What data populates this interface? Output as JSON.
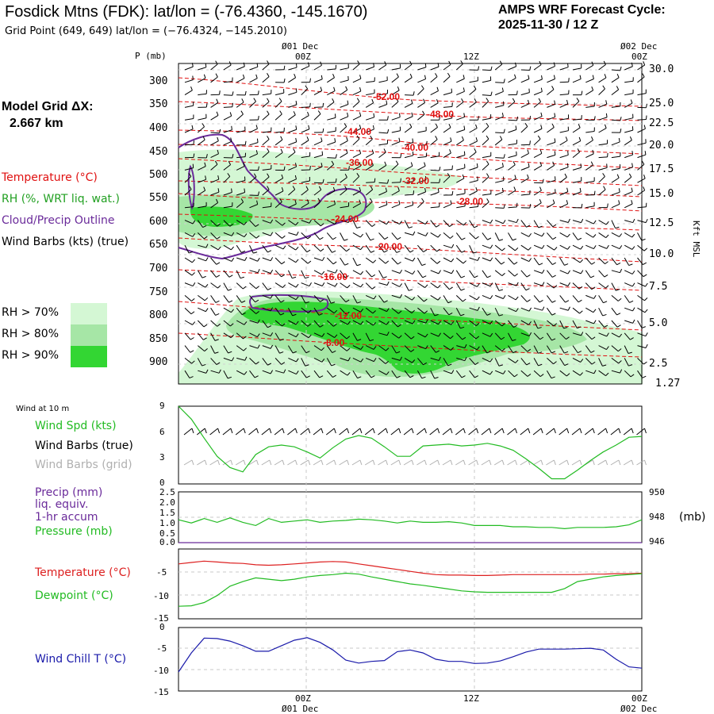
{
  "header": {
    "title": "Fosdick Mtns (FDK):  lat/lon = (-76.4360, -145.1670)",
    "grid_point": "Grid Point (649, 649) lat/lon = (−76.4324, −145.2010)",
    "cycle_line1": "AMPS WRF Forecast Cycle:",
    "cycle_line2": "2025-11-30 / 12  Z"
  },
  "legend": {
    "model_grid_label": "Model Grid ΔX:",
    "model_grid_value": "2.667 km",
    "temperature": "Temperature (°C)",
    "rh": "RH (%, WRT liq. wat.)",
    "cloud": "Cloud/Precip Outline",
    "wind_barbs": "Wind Barbs (kts) (true)",
    "rh70": "RH > 70%",
    "rh80": "RH > 80%",
    "rh90": "RH > 90%",
    "rh70_color": "#d4f7d4",
    "rh80_color": "#a6e6a6",
    "rh90_color": "#33d633",
    "temp_color": "#e01010",
    "rh_label_color": "#22a022",
    "cloud_color": "#6a2a9a"
  },
  "time_axis": {
    "top_date_left": "Ø01 Dec",
    "top_date_right": "Ø02 Dec",
    "bottom_date_left": "Ø01 Dec",
    "bottom_date_right": "Ø02 Dec",
    "ticks": [
      "00Z",
      "12Z",
      "00Z"
    ]
  },
  "panels": {
    "wind_at_10m": "Wind at 10 m",
    "wind_spd": "Wind Spd (kts)",
    "wind_barbs_true": "Wind Barbs (true)",
    "wind_barbs_grid": "Wind Barbs (grid)",
    "precip1": "Precip (mm)",
    "precip2": "liq. equiv.",
    "precip3": "1-hr accum",
    "pressure": "Pressure (mb)",
    "pressure_unit": "(mb)",
    "temperature": "Temperature (°C)",
    "dewpoint": "Dewpoint (°C)",
    "wind_chill": "Wind Chill T (°C)",
    "green": "#22bb22",
    "red": "#dd2020",
    "purple": "#6a2a9a",
    "blue": "#1a1aaa",
    "grid_gray": "#b0b0b0"
  },
  "chart_data": [
    {
      "type": "contour",
      "name": "Time-height cross section",
      "ylabel": "P (mb)",
      "ylabel_right": "Kft MSL",
      "y_ticks": [
        "300",
        "350",
        "400",
        "450",
        "500",
        "550",
        "600",
        "650",
        "700",
        "750",
        "800",
        "850",
        "900"
      ],
      "y_right_ticks": [
        "30.0",
        "25.0",
        "22.5",
        "20.0",
        "17.5",
        "15.0",
        "12.5",
        "10.0",
        "7.5",
        "5.0",
        "2.5",
        "1.27"
      ],
      "temperature_contour_labels": [
        "-52.00",
        "-48.00",
        "-44.00",
        "-40.00",
        "-36.00",
        "-32.00",
        "-28.00",
        "-24.00",
        "-20.00",
        "-16.00",
        "-12.00",
        "-8.00"
      ]
    },
    {
      "type": "line",
      "name": "Wind speed 10 m",
      "ylabel": "Wind Spd (kts)",
      "y_ticks": [
        "9",
        "6",
        "3",
        "0"
      ],
      "ylim": [
        0,
        9
      ],
      "x_hours": [
        0,
        1,
        2,
        3,
        4,
        5,
        6,
        7,
        8,
        9,
        10,
        11,
        12,
        13,
        14,
        15,
        16,
        17,
        18,
        19,
        20,
        21,
        22,
        23,
        24,
        25,
        26,
        27,
        28,
        29,
        30,
        31,
        32,
        33,
        34,
        35,
        36
      ],
      "values": [
        9.0,
        7.5,
        5.3,
        3.2,
        1.9,
        1.4,
        3.4,
        4.3,
        4.5,
        4.3,
        3.7,
        3.0,
        4.2,
        5.2,
        5.6,
        5.3,
        4.3,
        3.2,
        3.2,
        4.4,
        4.5,
        4.6,
        4.4,
        4.5,
        4.7,
        4.4,
        3.9,
        2.9,
        1.8,
        0.6,
        0.6,
        1.6,
        2.7,
        3.7,
        4.5,
        5.4,
        5.5
      ]
    },
    {
      "type": "line",
      "name": "Precip and pressure",
      "ylabel": "Precip (mm) / Pressure (mb)",
      "y_ticks": [
        "2.5",
        "2.0",
        "1.5",
        "1.0",
        "0.5",
        "0.0"
      ],
      "y_right_ticks": [
        "950",
        "948",
        "946"
      ],
      "ylim_right": [
        946,
        950
      ],
      "x_hours": [
        0,
        1,
        2,
        3,
        4,
        5,
        6,
        7,
        8,
        9,
        10,
        11,
        12,
        13,
        14,
        15,
        16,
        17,
        18,
        19,
        20,
        21,
        22,
        23,
        24,
        25,
        26,
        27,
        28,
        29,
        30,
        31,
        32,
        33,
        34,
        35,
        36
      ],
      "pressure": [
        947.8,
        947.55,
        947.9,
        947.6,
        947.95,
        947.6,
        947.35,
        947.9,
        947.6,
        947.7,
        947.8,
        947.6,
        947.7,
        947.75,
        947.85,
        947.8,
        947.7,
        947.55,
        947.7,
        947.6,
        947.6,
        947.65,
        947.55,
        947.35,
        947.35,
        947.35,
        947.25,
        947.25,
        947.2,
        947.2,
        947.1,
        947.2,
        947.2,
        947.2,
        947.25,
        947.4,
        947.8
      ],
      "precip": [
        0,
        0,
        0,
        0,
        0,
        0,
        0,
        0,
        0,
        0,
        0,
        0,
        0,
        0,
        0,
        0,
        0,
        0,
        0,
        0,
        0,
        0,
        0,
        0,
        0,
        0,
        0,
        0,
        0,
        0,
        0,
        0,
        0,
        0,
        0,
        0,
        0
      ]
    },
    {
      "type": "line",
      "name": "Temperature and dewpoint",
      "y_ticks": [
        "-5",
        "-10",
        "-15"
      ],
      "ylim": [
        -15,
        0
      ],
      "x_hours": [
        0,
        1,
        2,
        3,
        4,
        5,
        6,
        7,
        8,
        9,
        10,
        11,
        12,
        13,
        14,
        15,
        16,
        17,
        18,
        19,
        20,
        21,
        22,
        23,
        24,
        25,
        26,
        27,
        28,
        29,
        30,
        31,
        32,
        33,
        34,
        35,
        36
      ],
      "series": [
        {
          "name": "Temperature (°C)",
          "values": [
            -3.2,
            -2.9,
            -2.6,
            -2.8,
            -3.0,
            -3.1,
            -3.4,
            -3.5,
            -3.4,
            -3.2,
            -3.0,
            -2.8,
            -2.7,
            -2.8,
            -3.2,
            -3.6,
            -4.0,
            -4.4,
            -4.8,
            -5.2,
            -5.5,
            -5.6,
            -5.6,
            -5.7,
            -5.7,
            -5.6,
            -5.5,
            -5.5,
            -5.5,
            -5.5,
            -5.5,
            -5.5,
            -5.4,
            -5.4,
            -5.3,
            -5.3,
            -5.2
          ]
        },
        {
          "name": "Dewpoint (°C)",
          "values": [
            -12.3,
            -12.2,
            -11.5,
            -10.0,
            -8.0,
            -7.0,
            -6.2,
            -6.5,
            -6.8,
            -6.5,
            -6.0,
            -5.7,
            -5.5,
            -5.2,
            -5.4,
            -6.0,
            -6.5,
            -7.0,
            -7.5,
            -7.8,
            -8.2,
            -8.6,
            -9.0,
            -9.2,
            -9.3,
            -9.3,
            -9.3,
            -9.3,
            -9.3,
            -9.3,
            -8.5,
            -7.0,
            -6.5,
            -6.0,
            -5.7,
            -5.5,
            -5.3
          ]
        }
      ]
    },
    {
      "type": "line",
      "name": "Wind chill",
      "y_ticks": [
        "0",
        "-5",
        "-10",
        "-15"
      ],
      "ylim": [
        -15,
        0
      ],
      "x_hours": [
        0,
        1,
        2,
        3,
        4,
        5,
        6,
        7,
        8,
        9,
        10,
        11,
        12,
        13,
        14,
        15,
        16,
        17,
        18,
        19,
        20,
        21,
        22,
        23,
        24,
        25,
        26,
        27,
        28,
        29,
        30,
        31,
        32,
        33,
        34,
        35,
        36
      ],
      "series": [
        {
          "name": "Wind Chill T (°C)",
          "values": [
            -10.5,
            -6.0,
            -2.5,
            -2.6,
            -3.2,
            -4.3,
            -5.6,
            -5.6,
            -4.3,
            -3.0,
            -2.4,
            -3.5,
            -5.3,
            -7.7,
            -8.4,
            -8.0,
            -7.8,
            -5.7,
            -5.3,
            -6.0,
            -7.5,
            -8.0,
            -8.0,
            -8.5,
            -8.4,
            -7.9,
            -6.9,
            -5.8,
            -5.1,
            -5.1,
            -5.1,
            -5.0,
            -4.9,
            -5.3,
            -7.5,
            -9.3,
            -9.6
          ]
        }
      ]
    }
  ]
}
